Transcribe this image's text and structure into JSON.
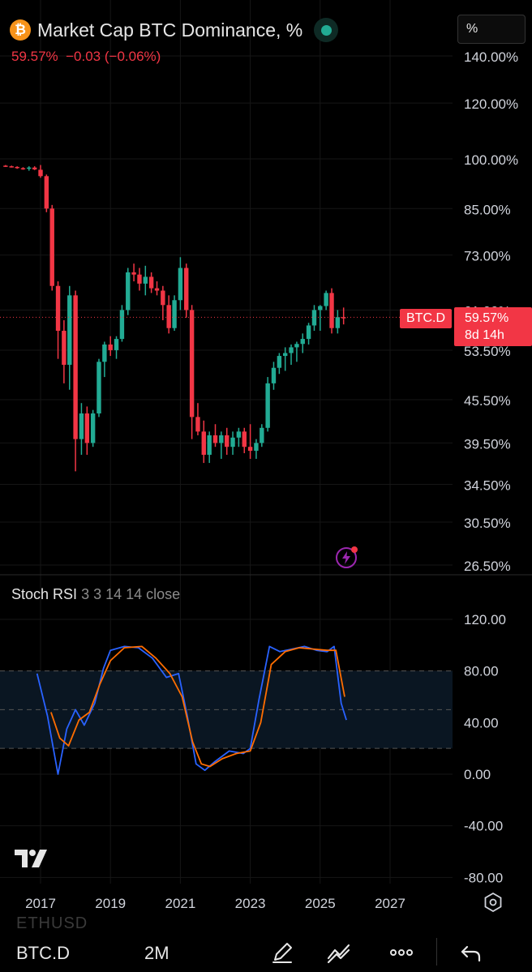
{
  "header": {
    "title": "Market Cap BTC Dominance, %",
    "last_value": "59.57%",
    "change": "−0.03 (−0.06%)",
    "scale_button": "%",
    "logo_icon": "bitcoin-icon"
  },
  "price_tag": {
    "symbol": "BTC.D",
    "price": "59.57%",
    "countdown": "8d 14h"
  },
  "price_axis_labels": [
    "140.00%",
    "120.00%",
    "100.00%",
    "85.00%",
    "73.00%",
    "61.00%",
    "53.50%",
    "45.50%",
    "39.50%",
    "34.50%",
    "30.50%",
    "26.50%"
  ],
  "indicator": {
    "name": "Stoch RSI",
    "params": "3 3 14 14 close",
    "axis_labels": [
      "120.00",
      "80.00",
      "40.00",
      "0.00",
      "-40.00",
      "-80.00"
    ]
  },
  "time_axis_labels": [
    "2017",
    "2019",
    "2021",
    "2023",
    "2025",
    "2027"
  ],
  "bottom_bar": {
    "symbol": "BTC.D",
    "timeframe": "2M",
    "ghost_symbol": "ETHUSD",
    "icons": [
      "pencil-icon",
      "trend-icon",
      "more-icon",
      "undo-icon"
    ]
  },
  "colors": {
    "up": "#22ab94",
    "down": "#f23645",
    "k_line": "#2962ff",
    "d_line": "#ff6d00",
    "band": "#0a1622"
  },
  "chart_data": [
    {
      "type": "candlestick",
      "title": "Market Cap BTC Dominance, %",
      "timeframe": "2M",
      "x_range": [
        2016.0,
        2028.5
      ],
      "y_scale": "log",
      "ylim": [
        26.5,
        140
      ],
      "candles": [
        [
          2016.0,
          97.8,
          98.0,
          97.4,
          97.6
        ],
        [
          2016.17,
          97.6,
          97.8,
          97.2,
          97.4
        ],
        [
          2016.33,
          97.4,
          97.6,
          96.8,
          97.0
        ],
        [
          2016.5,
          97.0,
          97.3,
          96.5,
          96.8
        ],
        [
          2016.67,
          96.8,
          97.6,
          96.2,
          97.2
        ],
        [
          2016.83,
          97.2,
          97.6,
          96.4,
          96.6
        ],
        [
          2017.0,
          96.5,
          98.0,
          94.0,
          94.5
        ],
        [
          2017.17,
          94.5,
          95.0,
          84.0,
          85.0
        ],
        [
          2017.33,
          85.0,
          86.0,
          65.0,
          66.0
        ],
        [
          2017.5,
          66.0,
          67.0,
          52.0,
          57.0
        ],
        [
          2017.67,
          57.0,
          59.0,
          48.0,
          51.0
        ],
        [
          2017.83,
          51.0,
          66.0,
          47.0,
          64.0
        ],
        [
          2018.0,
          64.0,
          65.0,
          36.0,
          40.0
        ],
        [
          2018.17,
          40.0,
          45.0,
          38.0,
          43.5
        ],
        [
          2018.33,
          43.5,
          44.5,
          38.0,
          39.5
        ],
        [
          2018.5,
          39.5,
          44.0,
          39.0,
          43.5
        ],
        [
          2018.67,
          43.5,
          52.0,
          43.0,
          51.5
        ],
        [
          2018.83,
          51.5,
          55.0,
          49.0,
          54.5
        ],
        [
          2019.0,
          54.5,
          56.0,
          52.5,
          53.5
        ],
        [
          2019.17,
          53.5,
          56.0,
          52.0,
          55.5
        ],
        [
          2019.33,
          55.5,
          62.0,
          55.0,
          61.0
        ],
        [
          2019.5,
          61.0,
          70.0,
          60.0,
          69.0
        ],
        [
          2019.67,
          69.0,
          71.0,
          67.0,
          68.5
        ],
        [
          2019.83,
          68.5,
          70.0,
          65.0,
          66.5
        ],
        [
          2020.0,
          66.5,
          70.5,
          64.0,
          68.0
        ],
        [
          2020.17,
          68.0,
          69.0,
          64.5,
          65.5
        ],
        [
          2020.33,
          65.5,
          67.0,
          64.0,
          65.0
        ],
        [
          2020.5,
          65.0,
          66.0,
          59.0,
          62.0
        ],
        [
          2020.67,
          62.0,
          64.0,
          56.5,
          57.5
        ],
        [
          2020.83,
          57.5,
          64.0,
          57.0,
          63.0
        ],
        [
          2021.0,
          63.0,
          72.5,
          61.0,
          70.0
        ],
        [
          2021.17,
          70.0,
          71.0,
          59.5,
          61.0
        ],
        [
          2021.33,
          61.0,
          62.0,
          40.0,
          43.0
        ],
        [
          2021.5,
          43.0,
          45.0,
          40.5,
          41.0
        ],
        [
          2021.67,
          41.0,
          42.5,
          37.0,
          38.0
        ],
        [
          2021.83,
          38.0,
          41.0,
          37.0,
          40.5
        ],
        [
          2022.0,
          40.5,
          42.0,
          39.0,
          39.5
        ],
        [
          2022.17,
          39.5,
          41.0,
          37.5,
          40.5
        ],
        [
          2022.33,
          40.5,
          41.5,
          38.0,
          39.0
        ],
        [
          2022.5,
          39.0,
          41.0,
          38.0,
          40.2
        ],
        [
          2022.67,
          40.2,
          41.5,
          39.0,
          41.0
        ],
        [
          2022.83,
          41.0,
          41.5,
          38.2,
          39.0
        ],
        [
          2023.0,
          39.0,
          42.0,
          37.5,
          38.5
        ],
        [
          2023.17,
          38.5,
          40.0,
          37.5,
          39.5
        ],
        [
          2023.33,
          39.5,
          42.0,
          39.0,
          41.5
        ],
        [
          2023.5,
          41.5,
          49.0,
          41.0,
          48.0
        ],
        [
          2023.67,
          48.0,
          51.5,
          47.0,
          50.5
        ],
        [
          2023.83,
          50.5,
          53.0,
          49.5,
          52.5
        ],
        [
          2024.0,
          52.5,
          54.0,
          50.0,
          53.0
        ],
        [
          2024.17,
          53.0,
          54.5,
          51.0,
          54.0
        ],
        [
          2024.33,
          54.0,
          55.0,
          51.5,
          54.6
        ],
        [
          2024.5,
          54.6,
          56.5,
          53.0,
          55.5
        ],
        [
          2024.67,
          55.5,
          58.5,
          54.5,
          58.0
        ],
        [
          2024.83,
          58.0,
          62.0,
          57.0,
          61.0
        ],
        [
          2025.0,
          61.0,
          62.0,
          57.0,
          61.8
        ],
        [
          2025.17,
          61.8,
          65.0,
          61.0,
          64.5
        ],
        [
          2025.33,
          64.5,
          65.5,
          56.5,
          57.5
        ],
        [
          2025.5,
          57.5,
          61.0,
          56.5,
          59.6
        ],
        [
          2025.67,
          59.6,
          61.5,
          58.2,
          59.57
        ]
      ],
      "last_price": 59.57
    },
    {
      "type": "line",
      "title": "Stoch RSI",
      "ylim": [
        -80,
        120
      ],
      "hlines": [
        80,
        50,
        20
      ],
      "series": [
        {
          "name": "K",
          "color": "#2962ff",
          "points": [
            [
              2016.9,
              78
            ],
            [
              2017.2,
              45
            ],
            [
              2017.5,
              0
            ],
            [
              2017.75,
              35
            ],
            [
              2018.0,
              50
            ],
            [
              2018.25,
              38
            ],
            [
              2018.55,
              55
            ],
            [
              2018.8,
              82
            ],
            [
              2019.0,
              96
            ],
            [
              2019.4,
              99
            ],
            [
              2019.8,
              98
            ],
            [
              2020.2,
              90
            ],
            [
              2020.6,
              75
            ],
            [
              2020.95,
              78
            ],
            [
              2021.2,
              45
            ],
            [
              2021.45,
              8
            ],
            [
              2021.7,
              3
            ],
            [
              2022.0,
              10
            ],
            [
              2022.4,
              18
            ],
            [
              2022.8,
              16
            ],
            [
              2023.0,
              20
            ],
            [
              2023.25,
              58
            ],
            [
              2023.55,
              99
            ],
            [
              2023.85,
              95
            ],
            [
              2024.2,
              97
            ],
            [
              2024.55,
              99
            ],
            [
              2024.9,
              96
            ],
            [
              2025.2,
              95
            ],
            [
              2025.4,
              99
            ],
            [
              2025.6,
              55
            ],
            [
              2025.75,
              42
            ]
          ]
        },
        {
          "name": "D",
          "color": "#ff6d00",
          "points": [
            [
              2017.3,
              48
            ],
            [
              2017.55,
              28
            ],
            [
              2017.8,
              22
            ],
            [
              2018.1,
              42
            ],
            [
              2018.4,
              48
            ],
            [
              2018.7,
              70
            ],
            [
              2019.0,
              88
            ],
            [
              2019.4,
              98
            ],
            [
              2019.9,
              99
            ],
            [
              2020.3,
              90
            ],
            [
              2020.7,
              78
            ],
            [
              2021.05,
              60
            ],
            [
              2021.35,
              25
            ],
            [
              2021.6,
              8
            ],
            [
              2021.85,
              6
            ],
            [
              2022.2,
              12
            ],
            [
              2022.6,
              16
            ],
            [
              2023.0,
              18
            ],
            [
              2023.3,
              40
            ],
            [
              2023.6,
              85
            ],
            [
              2024.0,
              95
            ],
            [
              2024.4,
              98
            ],
            [
              2024.8,
              97
            ],
            [
              2025.2,
              96
            ],
            [
              2025.45,
              96
            ],
            [
              2025.7,
              60
            ]
          ]
        }
      ]
    }
  ]
}
